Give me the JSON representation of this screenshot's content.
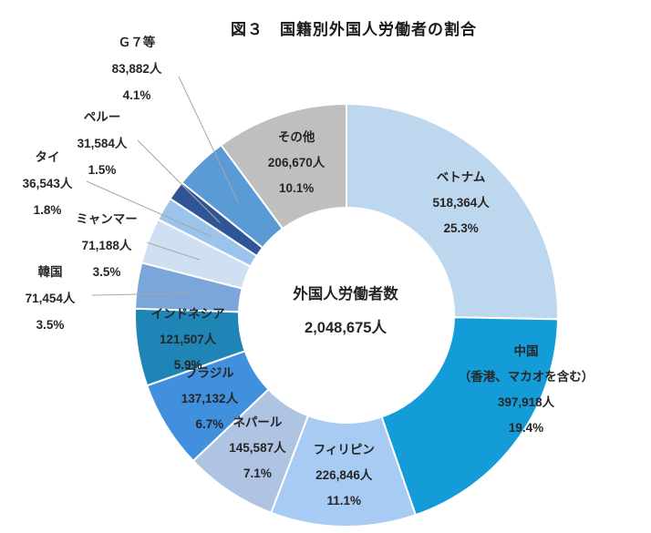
{
  "title": "図３　国籍別外国人労働者の割合",
  "chart_data": {
    "type": "pie",
    "subtype": "donut",
    "title": "図３　国籍別外国人労働者の割合",
    "center_label": "外国人労働者数",
    "center_value": "2,048,675人",
    "total": 2048675,
    "unit": "人",
    "direction": "clockwise",
    "start_angle_deg": 0,
    "leader_line_color": "#a6a6a6",
    "text_color": "#262626",
    "slices": [
      {
        "name": "ベトナム",
        "sub": "",
        "value": 518364,
        "count_label": "518,364人",
        "percent": 25.3,
        "percent_label": "25.3%",
        "color": "#BDD7EE",
        "label_position": "inside"
      },
      {
        "name": "中国",
        "sub": "（香港、マカオを含む）",
        "value": 397918,
        "count_label": "397,918人",
        "percent": 19.4,
        "percent_label": "19.4%",
        "color": "#139CD8",
        "label_position": "inside"
      },
      {
        "name": "フィリピン",
        "sub": "",
        "value": 226846,
        "count_label": "226,846人",
        "percent": 11.1,
        "percent_label": "11.1%",
        "color": "#A7CBF2",
        "label_position": "inside"
      },
      {
        "name": "ネパール",
        "sub": "",
        "value": 145587,
        "count_label": "145,587人",
        "percent": 7.1,
        "percent_label": "7.1%",
        "color": "#AFC3E3",
        "label_position": "inside"
      },
      {
        "name": "ブラジル",
        "sub": "",
        "value": 137132,
        "count_label": "137,132人",
        "percent": 6.7,
        "percent_label": "6.7%",
        "color": "#4190DE",
        "label_position": "inside"
      },
      {
        "name": "インドネシア",
        "sub": "",
        "value": 121507,
        "count_label": "121,507人",
        "percent": 5.9,
        "percent_label": "5.9%",
        "color": "#1F85B6",
        "label_position": "inside"
      },
      {
        "name": "韓国",
        "sub": "",
        "value": 71454,
        "count_label": "71,454人",
        "percent": 3.5,
        "percent_label": "3.5%",
        "color": "#7BA6DA",
        "label_position": "outside"
      },
      {
        "name": "ミャンマー",
        "sub": "",
        "value": 71188,
        "count_label": "71,188人",
        "percent": 3.5,
        "percent_label": "3.5%",
        "color": "#CFE0F2",
        "label_position": "outside"
      },
      {
        "name": "タイ",
        "sub": "",
        "value": 36543,
        "count_label": "36,543人",
        "percent": 1.8,
        "percent_label": "1.8%",
        "color": "#9CC3EC",
        "label_position": "outside"
      },
      {
        "name": "ペルー",
        "sub": "",
        "value": 31584,
        "count_label": "31,584人",
        "percent": 1.5,
        "percent_label": "1.5%",
        "color": "#2F5597",
        "label_position": "outside"
      },
      {
        "name": "Ｇ７等",
        "sub": "",
        "value": 83882,
        "count_label": "83,882人",
        "percent": 4.1,
        "percent_label": "4.1%",
        "color": "#5B9BD5",
        "label_position": "outside"
      },
      {
        "name": "その他",
        "sub": "",
        "value": 206670,
        "count_label": "206,670人",
        "percent": 10.1,
        "percent_label": "10.1%",
        "color": "#BFBFBF",
        "label_position": "inside"
      }
    ]
  }
}
